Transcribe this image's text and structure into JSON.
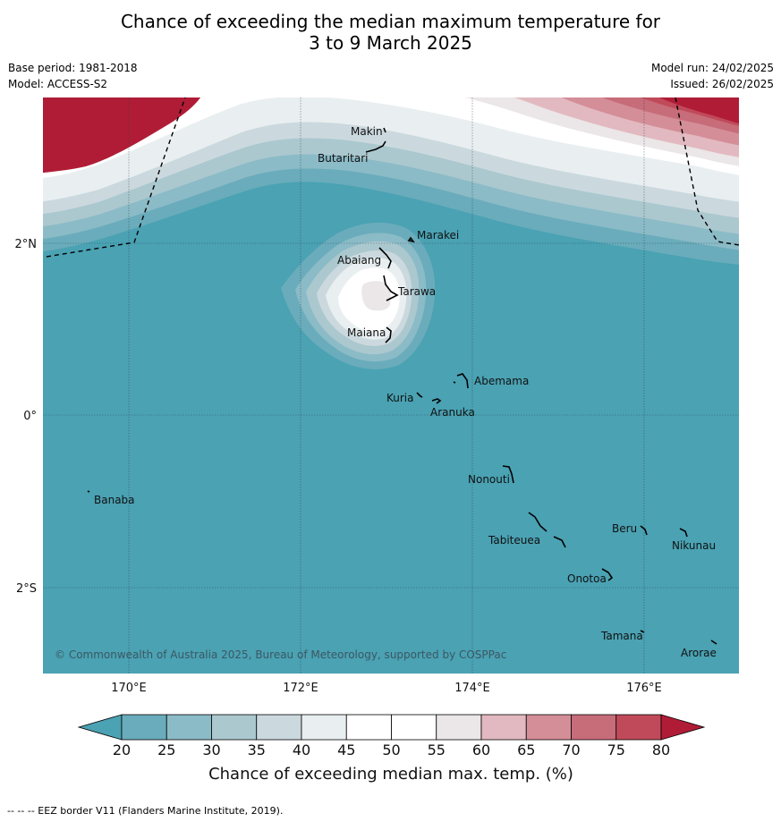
{
  "header": {
    "title_line1": "Chance of exceeding the median maximum temperature for",
    "title_line2": "3 to 9 March 2025",
    "base_period": "Base period: 1981-2018",
    "model": "Model: ACCESS-S2",
    "model_run": "Model run: 24/02/2025",
    "issued": "Issued: 26/02/2025"
  },
  "map": {
    "lon_ticks": [
      "170°E",
      "172°E",
      "174°E",
      "176°E"
    ],
    "lat_ticks": [
      "2°N",
      "0°",
      "2°S"
    ],
    "copyright": "© Commonwealth of Australia 2025, Bureau of Meteorology, supported by COSPPac",
    "islands": [
      "Makin",
      "Butaritari",
      "Marakei",
      "Abaiang",
      "Tarawa",
      "Maiana",
      "Abemama",
      "Kuria",
      "Aranuka",
      "Nonouti",
      "Banaba",
      "Beru",
      "Nikunau",
      "Tabiteuea",
      "Onotoa",
      "Tamana",
      "Arorae"
    ],
    "colors": {
      "ocean_20": "#4aa2b3",
      "high_80": "#b01c36",
      "near_50": "#ffffff",
      "levels": [
        "#4aa2b3",
        "#6aacbb",
        "#8bbbc7",
        "#abc8cf",
        "#cbd9de",
        "#e9eff1",
        "#ffffff",
        "#ffffff",
        "#ebe6e7",
        "#e2b9c0",
        "#d48e98",
        "#c76c79",
        "#c04a5a",
        "#b01c36"
      ]
    }
  },
  "colorbar": {
    "ticks": [
      "20",
      "25",
      "30",
      "35",
      "40",
      "45",
      "50",
      "55",
      "60",
      "65",
      "70",
      "75",
      "80"
    ],
    "label": "Chance of exceeding median max. temp. (%)"
  },
  "footer": "--  --  -- EEZ border V11 (Flanders Marine Institute, 2019)."
}
